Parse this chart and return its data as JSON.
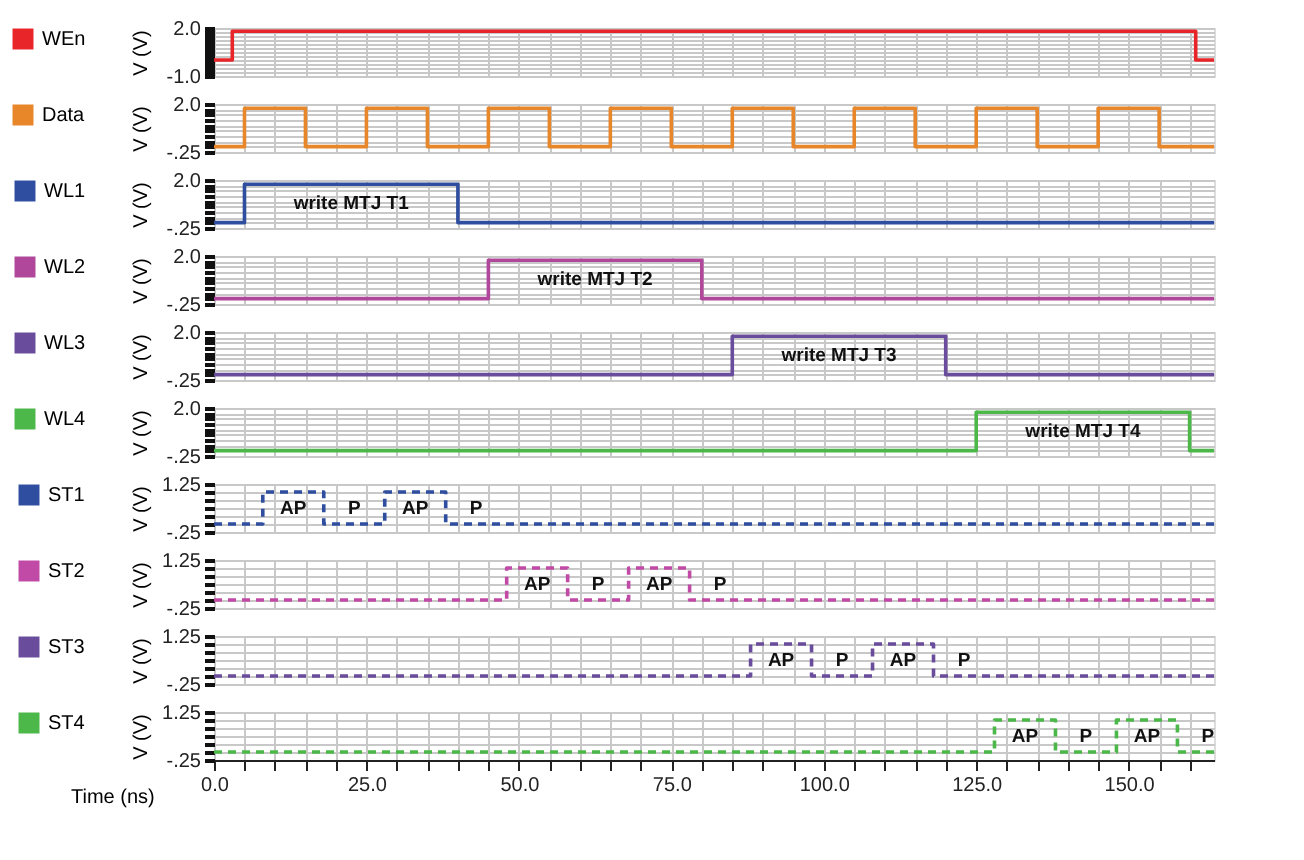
{
  "chart_data": [
    {
      "type": "step",
      "ylabel": "V (V)",
      "xlim": [
        0,
        164
      ],
      "ylim": [
        -1.0,
        2.0
      ],
      "tick_labels": "y",
      "grid": true,
      "legend": "left",
      "line_style": "solid",
      "xticks": [
        {
          "value": 0,
          "label": null
        },
        {
          "value": 5,
          "label": null
        },
        {
          "value": 10,
          "label": null
        },
        {
          "value": 15,
          "label": null
        },
        {
          "value": 20,
          "label": null
        },
        {
          "value": 25,
          "label": null
        },
        {
          "value": 30,
          "label": null
        },
        {
          "value": 35,
          "label": null
        },
        {
          "value": 40,
          "label": null
        },
        {
          "value": 45,
          "label": null
        },
        {
          "value": 50,
          "label": null
        },
        {
          "value": 55,
          "label": null
        },
        {
          "value": 60,
          "label": null
        },
        {
          "value": 65,
          "label": null
        },
        {
          "value": 70,
          "label": null
        },
        {
          "value": 75,
          "label": null
        },
        {
          "value": 80,
          "label": null
        },
        {
          "value": 85,
          "label": null
        },
        {
          "value": 90,
          "label": null
        },
        {
          "value": 95,
          "label": null
        },
        {
          "value": 100,
          "label": null
        },
        {
          "value": 105,
          "label": null
        },
        {
          "value": 110,
          "label": null
        },
        {
          "value": 115,
          "label": null
        },
        {
          "value": 120,
          "label": null
        },
        {
          "value": 125,
          "label": null
        },
        {
          "value": 130,
          "label": null
        },
        {
          "value": 135,
          "label": null
        },
        {
          "value": 140,
          "label": null
        },
        {
          "value": 145,
          "label": null
        },
        {
          "value": 150,
          "label": null
        },
        {
          "value": 155,
          "label": null
        },
        {
          "value": 160,
          "label": null
        }
      ],
      "yticks": [
        {
          "value": -1.0,
          "label": "-1.0"
        },
        {
          "value": -0.75,
          "label": null
        },
        {
          "value": -0.5,
          "label": null
        },
        {
          "value": -0.25,
          "label": null
        },
        {
          "value": 0,
          "label": null
        },
        {
          "value": 0.25,
          "label": null
        },
        {
          "value": 0.5,
          "label": null
        },
        {
          "value": 0.75,
          "label": null
        },
        {
          "value": 1.0,
          "label": null
        },
        {
          "value": 1.25,
          "label": null
        },
        {
          "value": 1.5,
          "label": null
        },
        {
          "value": 1.75,
          "label": null
        },
        {
          "value": 2.0,
          "label": "2.0"
        }
      ],
      "x": [
        0,
        3,
        161,
        164
      ],
      "series": [
        {
          "name": "WEn",
          "color": "#e8262a",
          "values": [
            0,
            1.8,
            0,
            0
          ]
        }
      ]
    },
    {
      "type": "step",
      "ylabel": "V (V)",
      "xlim": [
        0,
        164
      ],
      "ylim": [
        -0.25,
        2.0
      ],
      "tick_labels": "y",
      "grid": true,
      "legend": "left",
      "line_style": "solid",
      "xticks": [
        {
          "value": 0,
          "label": null
        },
        {
          "value": 5,
          "label": null
        },
        {
          "value": 10,
          "label": null
        },
        {
          "value": 15,
          "label": null
        },
        {
          "value": 20,
          "label": null
        },
        {
          "value": 25,
          "label": null
        },
        {
          "value": 30,
          "label": null
        },
        {
          "value": 35,
          "label": null
        },
        {
          "value": 40,
          "label": null
        },
        {
          "value": 45,
          "label": null
        },
        {
          "value": 50,
          "label": null
        },
        {
          "value": 55,
          "label": null
        },
        {
          "value": 60,
          "label": null
        },
        {
          "value": 65,
          "label": null
        },
        {
          "value": 70,
          "label": null
        },
        {
          "value": 75,
          "label": null
        },
        {
          "value": 80,
          "label": null
        },
        {
          "value": 85,
          "label": null
        },
        {
          "value": 90,
          "label": null
        },
        {
          "value": 95,
          "label": null
        },
        {
          "value": 100,
          "label": null
        },
        {
          "value": 105,
          "label": null
        },
        {
          "value": 110,
          "label": null
        },
        {
          "value": 115,
          "label": null
        },
        {
          "value": 120,
          "label": null
        },
        {
          "value": 125,
          "label": null
        },
        {
          "value": 130,
          "label": null
        },
        {
          "value": 135,
          "label": null
        },
        {
          "value": 140,
          "label": null
        },
        {
          "value": 145,
          "label": null
        },
        {
          "value": 150,
          "label": null
        },
        {
          "value": 155,
          "label": null
        },
        {
          "value": 160,
          "label": null
        }
      ],
      "yticks": [
        {
          "value": -0.25,
          "label": "-.25"
        },
        {
          "value": 0,
          "label": null
        },
        {
          "value": 0.25,
          "label": null
        },
        {
          "value": 0.5,
          "label": null
        },
        {
          "value": 0.75,
          "label": null
        },
        {
          "value": 1.0,
          "label": null
        },
        {
          "value": 1.25,
          "label": null
        },
        {
          "value": 1.5,
          "label": null
        },
        {
          "value": 1.75,
          "label": null
        },
        {
          "value": 2.0,
          "label": "2.0"
        }
      ],
      "x": [
        0,
        5,
        15,
        25,
        35,
        45,
        55,
        65,
        75,
        85,
        95,
        105,
        115,
        125,
        135,
        145,
        155,
        164
      ],
      "series": [
        {
          "name": "Data",
          "color": "#e8862a",
          "values": [
            0,
            1.8,
            0,
            1.8,
            0,
            1.8,
            0,
            1.8,
            0,
            1.8,
            0,
            1.8,
            0,
            1.8,
            0,
            1.8,
            0,
            0
          ]
        }
      ]
    },
    {
      "type": "step",
      "ylabel": "V (V)",
      "xlim": [
        0,
        164
      ],
      "ylim": [
        -0.25,
        2.0
      ],
      "tick_labels": "y",
      "grid": true,
      "legend": "left",
      "line_style": "solid",
      "xticks": [
        {
          "value": 0,
          "label": null
        },
        {
          "value": 5,
          "label": null
        },
        {
          "value": 10,
          "label": null
        },
        {
          "value": 15,
          "label": null
        },
        {
          "value": 20,
          "label": null
        },
        {
          "value": 25,
          "label": null
        },
        {
          "value": 30,
          "label": null
        },
        {
          "value": 35,
          "label": null
        },
        {
          "value": 40,
          "label": null
        },
        {
          "value": 45,
          "label": null
        },
        {
          "value": 50,
          "label": null
        },
        {
          "value": 55,
          "label": null
        },
        {
          "value": 60,
          "label": null
        },
        {
          "value": 65,
          "label": null
        },
        {
          "value": 70,
          "label": null
        },
        {
          "value": 75,
          "label": null
        },
        {
          "value": 80,
          "label": null
        },
        {
          "value": 85,
          "label": null
        },
        {
          "value": 90,
          "label": null
        },
        {
          "value": 95,
          "label": null
        },
        {
          "value": 100,
          "label": null
        },
        {
          "value": 105,
          "label": null
        },
        {
          "value": 110,
          "label": null
        },
        {
          "value": 115,
          "label": null
        },
        {
          "value": 120,
          "label": null
        },
        {
          "value": 125,
          "label": null
        },
        {
          "value": 130,
          "label": null
        },
        {
          "value": 135,
          "label": null
        },
        {
          "value": 140,
          "label": null
        },
        {
          "value": 145,
          "label": null
        },
        {
          "value": 150,
          "label": null
        },
        {
          "value": 155,
          "label": null
        },
        {
          "value": 160,
          "label": null
        }
      ],
      "yticks": [
        {
          "value": -0.25,
          "label": "-.25"
        },
        {
          "value": 0,
          "label": null
        },
        {
          "value": 0.25,
          "label": null
        },
        {
          "value": 0.5,
          "label": null
        },
        {
          "value": 0.75,
          "label": null
        },
        {
          "value": 1.0,
          "label": null
        },
        {
          "value": 1.25,
          "label": null
        },
        {
          "value": 1.5,
          "label": null
        },
        {
          "value": 1.75,
          "label": null
        },
        {
          "value": 2.0,
          "label": "2.0"
        }
      ],
      "x": [
        0,
        5,
        40,
        164
      ],
      "series": [
        {
          "name": "WL1",
          "color": "#2f4ea0",
          "values": [
            0,
            1.8,
            0,
            0
          ]
        }
      ],
      "annotations": [
        "write MTJ T1"
      ]
    },
    {
      "type": "step",
      "ylabel": "V (V)",
      "xlim": [
        0,
        164
      ],
      "ylim": [
        -0.25,
        2.0
      ],
      "tick_labels": "y",
      "grid": true,
      "legend": "left",
      "line_style": "solid",
      "xticks": [
        {
          "value": 0,
          "label": null
        },
        {
          "value": 5,
          "label": null
        },
        {
          "value": 10,
          "label": null
        },
        {
          "value": 15,
          "label": null
        },
        {
          "value": 20,
          "label": null
        },
        {
          "value": 25,
          "label": null
        },
        {
          "value": 30,
          "label": null
        },
        {
          "value": 35,
          "label": null
        },
        {
          "value": 40,
          "label": null
        },
        {
          "value": 45,
          "label": null
        },
        {
          "value": 50,
          "label": null
        },
        {
          "value": 55,
          "label": null
        },
        {
          "value": 60,
          "label": null
        },
        {
          "value": 65,
          "label": null
        },
        {
          "value": 70,
          "label": null
        },
        {
          "value": 75,
          "label": null
        },
        {
          "value": 80,
          "label": null
        },
        {
          "value": 85,
          "label": null
        },
        {
          "value": 90,
          "label": null
        },
        {
          "value": 95,
          "label": null
        },
        {
          "value": 100,
          "label": null
        },
        {
          "value": 105,
          "label": null
        },
        {
          "value": 110,
          "label": null
        },
        {
          "value": 115,
          "label": null
        },
        {
          "value": 120,
          "label": null
        },
        {
          "value": 125,
          "label": null
        },
        {
          "value": 130,
          "label": null
        },
        {
          "value": 135,
          "label": null
        },
        {
          "value": 140,
          "label": null
        },
        {
          "value": 145,
          "label": null
        },
        {
          "value": 150,
          "label": null
        },
        {
          "value": 155,
          "label": null
        },
        {
          "value": 160,
          "label": null
        }
      ],
      "yticks": [
        {
          "value": -0.25,
          "label": "-.25"
        },
        {
          "value": 0,
          "label": null
        },
        {
          "value": 0.25,
          "label": null
        },
        {
          "value": 0.5,
          "label": null
        },
        {
          "value": 0.75,
          "label": null
        },
        {
          "value": 1.0,
          "label": null
        },
        {
          "value": 1.25,
          "label": null
        },
        {
          "value": 1.5,
          "label": null
        },
        {
          "value": 1.75,
          "label": null
        },
        {
          "value": 2.0,
          "label": "2.0"
        }
      ],
      "x": [
        0,
        45,
        80,
        164
      ],
      "series": [
        {
          "name": "WL2",
          "color": "#b0479a",
          "values": [
            0,
            1.8,
            0,
            0
          ]
        }
      ],
      "annotations": [
        "write MTJ T2"
      ]
    },
    {
      "type": "step",
      "ylabel": "V (V)",
      "xlim": [
        0,
        164
      ],
      "ylim": [
        -0.25,
        2.0
      ],
      "tick_labels": "y",
      "grid": true,
      "legend": "left",
      "line_style": "solid",
      "xticks": [
        {
          "value": 0,
          "label": null
        },
        {
          "value": 5,
          "label": null
        },
        {
          "value": 10,
          "label": null
        },
        {
          "value": 15,
          "label": null
        },
        {
          "value": 20,
          "label": null
        },
        {
          "value": 25,
          "label": null
        },
        {
          "value": 30,
          "label": null
        },
        {
          "value": 35,
          "label": null
        },
        {
          "value": 40,
          "label": null
        },
        {
          "value": 45,
          "label": null
        },
        {
          "value": 50,
          "label": null
        },
        {
          "value": 55,
          "label": null
        },
        {
          "value": 60,
          "label": null
        },
        {
          "value": 65,
          "label": null
        },
        {
          "value": 70,
          "label": null
        },
        {
          "value": 75,
          "label": null
        },
        {
          "value": 80,
          "label": null
        },
        {
          "value": 85,
          "label": null
        },
        {
          "value": 90,
          "label": null
        },
        {
          "value": 95,
          "label": null
        },
        {
          "value": 100,
          "label": null
        },
        {
          "value": 105,
          "label": null
        },
        {
          "value": 110,
          "label": null
        },
        {
          "value": 115,
          "label": null
        },
        {
          "value": 120,
          "label": null
        },
        {
          "value": 125,
          "label": null
        },
        {
          "value": 130,
          "label": null
        },
        {
          "value": 135,
          "label": null
        },
        {
          "value": 140,
          "label": null
        },
        {
          "value": 145,
          "label": null
        },
        {
          "value": 150,
          "label": null
        },
        {
          "value": 155,
          "label": null
        },
        {
          "value": 160,
          "label": null
        }
      ],
      "yticks": [
        {
          "value": -0.25,
          "label": "-.25"
        },
        {
          "value": 0,
          "label": null
        },
        {
          "value": 0.25,
          "label": null
        },
        {
          "value": 0.5,
          "label": null
        },
        {
          "value": 0.75,
          "label": null
        },
        {
          "value": 1.0,
          "label": null
        },
        {
          "value": 1.25,
          "label": null
        },
        {
          "value": 1.5,
          "label": null
        },
        {
          "value": 1.75,
          "label": null
        },
        {
          "value": 2.0,
          "label": "2.0"
        }
      ],
      "x": [
        0,
        85,
        120,
        164
      ],
      "series": [
        {
          "name": "WL3",
          "color": "#6a4c9c",
          "values": [
            0,
            1.8,
            0,
            0
          ]
        }
      ],
      "annotations": [
        "write MTJ T3"
      ]
    },
    {
      "type": "step",
      "ylabel": "V (V)",
      "xlim": [
        0,
        164
      ],
      "ylim": [
        -0.25,
        2.0
      ],
      "tick_labels": "y",
      "grid": true,
      "legend": "left",
      "line_style": "solid",
      "xticks": [
        {
          "value": 0,
          "label": null
        },
        {
          "value": 5,
          "label": null
        },
        {
          "value": 10,
          "label": null
        },
        {
          "value": 15,
          "label": null
        },
        {
          "value": 20,
          "label": null
        },
        {
          "value": 25,
          "label": null
        },
        {
          "value": 30,
          "label": null
        },
        {
          "value": 35,
          "label": null
        },
        {
          "value": 40,
          "label": null
        },
        {
          "value": 45,
          "label": null
        },
        {
          "value": 50,
          "label": null
        },
        {
          "value": 55,
          "label": null
        },
        {
          "value": 60,
          "label": null
        },
        {
          "value": 65,
          "label": null
        },
        {
          "value": 70,
          "label": null
        },
        {
          "value": 75,
          "label": null
        },
        {
          "value": 80,
          "label": null
        },
        {
          "value": 85,
          "label": null
        },
        {
          "value": 90,
          "label": null
        },
        {
          "value": 95,
          "label": null
        },
        {
          "value": 100,
          "label": null
        },
        {
          "value": 105,
          "label": null
        },
        {
          "value": 110,
          "label": null
        },
        {
          "value": 115,
          "label": null
        },
        {
          "value": 120,
          "label": null
        },
        {
          "value": 125,
          "label": null
        },
        {
          "value": 130,
          "label": null
        },
        {
          "value": 135,
          "label": null
        },
        {
          "value": 140,
          "label": null
        },
        {
          "value": 145,
          "label": null
        },
        {
          "value": 150,
          "label": null
        },
        {
          "value": 155,
          "label": null
        },
        {
          "value": 160,
          "label": null
        }
      ],
      "yticks": [
        {
          "value": -0.25,
          "label": "-.25"
        },
        {
          "value": 0,
          "label": null
        },
        {
          "value": 0.25,
          "label": null
        },
        {
          "value": 0.5,
          "label": null
        },
        {
          "value": 0.75,
          "label": null
        },
        {
          "value": 1.0,
          "label": null
        },
        {
          "value": 1.25,
          "label": null
        },
        {
          "value": 1.5,
          "label": null
        },
        {
          "value": 1.75,
          "label": null
        },
        {
          "value": 2.0,
          "label": "2.0"
        }
      ],
      "x": [
        0,
        125,
        160,
        164
      ],
      "series": [
        {
          "name": "WL4",
          "color": "#4cb84a",
          "values": [
            0,
            1.8,
            0,
            0
          ]
        }
      ],
      "annotations": [
        "write MTJ T4"
      ]
    },
    {
      "type": "step",
      "ylabel": "V (V)",
      "xlim": [
        0,
        164
      ],
      "ylim": [
        -0.25,
        1.25
      ],
      "tick_labels": "y",
      "grid": true,
      "legend": "left",
      "line_style": "dashed",
      "xticks": [
        {
          "value": 0,
          "label": null
        },
        {
          "value": 5,
          "label": null
        },
        {
          "value": 10,
          "label": null
        },
        {
          "value": 15,
          "label": null
        },
        {
          "value": 20,
          "label": null
        },
        {
          "value": 25,
          "label": null
        },
        {
          "value": 30,
          "label": null
        },
        {
          "value": 35,
          "label": null
        },
        {
          "value": 40,
          "label": null
        },
        {
          "value": 45,
          "label": null
        },
        {
          "value": 50,
          "label": null
        },
        {
          "value": 55,
          "label": null
        },
        {
          "value": 60,
          "label": null
        },
        {
          "value": 65,
          "label": null
        },
        {
          "value": 70,
          "label": null
        },
        {
          "value": 75,
          "label": null
        },
        {
          "value": 80,
          "label": null
        },
        {
          "value": 85,
          "label": null
        },
        {
          "value": 90,
          "label": null
        },
        {
          "value": 95,
          "label": null
        },
        {
          "value": 100,
          "label": null
        },
        {
          "value": 105,
          "label": null
        },
        {
          "value": 110,
          "label": null
        },
        {
          "value": 115,
          "label": null
        },
        {
          "value": 120,
          "label": null
        },
        {
          "value": 125,
          "label": null
        },
        {
          "value": 130,
          "label": null
        },
        {
          "value": 135,
          "label": null
        },
        {
          "value": 140,
          "label": null
        },
        {
          "value": 145,
          "label": null
        },
        {
          "value": 150,
          "label": null
        },
        {
          "value": 155,
          "label": null
        },
        {
          "value": 160,
          "label": null
        }
      ],
      "yticks": [
        {
          "value": -0.25,
          "label": "-.25"
        },
        {
          "value": 0,
          "label": null
        },
        {
          "value": 0.25,
          "label": null
        },
        {
          "value": 0.5,
          "label": null
        },
        {
          "value": 0.75,
          "label": null
        },
        {
          "value": 1.0,
          "label": null
        },
        {
          "value": 1.25,
          "label": "1.25"
        }
      ],
      "x": [
        0,
        8,
        18,
        28,
        38,
        164
      ],
      "series": [
        {
          "name": "ST1",
          "color": "#2f4ea0",
          "values": [
            0,
            1.0,
            0,
            1.0,
            0,
            0
          ]
        }
      ],
      "annotations": [
        "AP",
        "P",
        "AP",
        "P"
      ]
    },
    {
      "type": "step",
      "ylabel": "V (V)",
      "xlim": [
        0,
        164
      ],
      "ylim": [
        -0.25,
        1.25
      ],
      "tick_labels": "y",
      "grid": true,
      "legend": "left",
      "line_style": "dashed",
      "xticks": [
        {
          "value": 0,
          "label": null
        },
        {
          "value": 5,
          "label": null
        },
        {
          "value": 10,
          "label": null
        },
        {
          "value": 15,
          "label": null
        },
        {
          "value": 20,
          "label": null
        },
        {
          "value": 25,
          "label": null
        },
        {
          "value": 30,
          "label": null
        },
        {
          "value": 35,
          "label": null
        },
        {
          "value": 40,
          "label": null
        },
        {
          "value": 45,
          "label": null
        },
        {
          "value": 50,
          "label": null
        },
        {
          "value": 55,
          "label": null
        },
        {
          "value": 60,
          "label": null
        },
        {
          "value": 65,
          "label": null
        },
        {
          "value": 70,
          "label": null
        },
        {
          "value": 75,
          "label": null
        },
        {
          "value": 80,
          "label": null
        },
        {
          "value": 85,
          "label": null
        },
        {
          "value": 90,
          "label": null
        },
        {
          "value": 95,
          "label": null
        },
        {
          "value": 100,
          "label": null
        },
        {
          "value": 105,
          "label": null
        },
        {
          "value": 110,
          "label": null
        },
        {
          "value": 115,
          "label": null
        },
        {
          "value": 120,
          "label": null
        },
        {
          "value": 125,
          "label": null
        },
        {
          "value": 130,
          "label": null
        },
        {
          "value": 135,
          "label": null
        },
        {
          "value": 140,
          "label": null
        },
        {
          "value": 145,
          "label": null
        },
        {
          "value": 150,
          "label": null
        },
        {
          "value": 155,
          "label": null
        },
        {
          "value": 160,
          "label": null
        }
      ],
      "yticks": [
        {
          "value": -0.25,
          "label": "-.25"
        },
        {
          "value": 0,
          "label": null
        },
        {
          "value": 0.25,
          "label": null
        },
        {
          "value": 0.5,
          "label": null
        },
        {
          "value": 0.75,
          "label": null
        },
        {
          "value": 1.0,
          "label": null
        },
        {
          "value": 1.25,
          "label": "1.25"
        }
      ],
      "x": [
        0,
        48,
        58,
        68,
        78,
        164
      ],
      "series": [
        {
          "name": "ST2",
          "color": "#c04aa6",
          "values": [
            0,
            1.0,
            0,
            1.0,
            0,
            0
          ]
        }
      ],
      "annotations": [
        "AP",
        "P",
        "AP",
        "P"
      ]
    },
    {
      "type": "step",
      "ylabel": "V (V)",
      "xlim": [
        0,
        164
      ],
      "ylim": [
        -0.25,
        1.25
      ],
      "tick_labels": "y",
      "grid": true,
      "legend": "left",
      "line_style": "dashed",
      "xticks": [
        {
          "value": 0,
          "label": null
        },
        {
          "value": 5,
          "label": null
        },
        {
          "value": 10,
          "label": null
        },
        {
          "value": 15,
          "label": null
        },
        {
          "value": 20,
          "label": null
        },
        {
          "value": 25,
          "label": null
        },
        {
          "value": 30,
          "label": null
        },
        {
          "value": 35,
          "label": null
        },
        {
          "value": 40,
          "label": null
        },
        {
          "value": 45,
          "label": null
        },
        {
          "value": 50,
          "label": null
        },
        {
          "value": 55,
          "label": null
        },
        {
          "value": 60,
          "label": null
        },
        {
          "value": 65,
          "label": null
        },
        {
          "value": 70,
          "label": null
        },
        {
          "value": 75,
          "label": null
        },
        {
          "value": 80,
          "label": null
        },
        {
          "value": 85,
          "label": null
        },
        {
          "value": 90,
          "label": null
        },
        {
          "value": 95,
          "label": null
        },
        {
          "value": 100,
          "label": null
        },
        {
          "value": 105,
          "label": null
        },
        {
          "value": 110,
          "label": null
        },
        {
          "value": 115,
          "label": null
        },
        {
          "value": 120,
          "label": null
        },
        {
          "value": 125,
          "label": null
        },
        {
          "value": 130,
          "label": null
        },
        {
          "value": 135,
          "label": null
        },
        {
          "value": 140,
          "label": null
        },
        {
          "value": 145,
          "label": null
        },
        {
          "value": 150,
          "label": null
        },
        {
          "value": 155,
          "label": null
        },
        {
          "value": 160,
          "label": null
        }
      ],
      "yticks": [
        {
          "value": -0.25,
          "label": "-.25"
        },
        {
          "value": 0,
          "label": null
        },
        {
          "value": 0.25,
          "label": null
        },
        {
          "value": 0.5,
          "label": null
        },
        {
          "value": 0.75,
          "label": null
        },
        {
          "value": 1.0,
          "label": null
        },
        {
          "value": 1.25,
          "label": "1.25"
        }
      ],
      "x": [
        0,
        88,
        98,
        108,
        118,
        164
      ],
      "series": [
        {
          "name": "ST3",
          "color": "#6a4c9c",
          "values": [
            0,
            1.0,
            0,
            1.0,
            0,
            0
          ]
        }
      ],
      "annotations": [
        "AP",
        "P",
        "AP",
        "P"
      ]
    },
    {
      "type": "step",
      "ylabel": "V (V)",
      "xlabel": "Time (ns)",
      "xlim": [
        0,
        164
      ],
      "ylim": [
        -0.25,
        1.25
      ],
      "grid": true,
      "legend": "left",
      "line_style": "dashed",
      "xticks": [
        {
          "value": 0,
          "label": "0.0"
        },
        {
          "value": 5,
          "label": null
        },
        {
          "value": 10,
          "label": null
        },
        {
          "value": 15,
          "label": null
        },
        {
          "value": 20,
          "label": null
        },
        {
          "value": 25,
          "label": "25.0"
        },
        {
          "value": 30,
          "label": null
        },
        {
          "value": 35,
          "label": null
        },
        {
          "value": 40,
          "label": null
        },
        {
          "value": 45,
          "label": null
        },
        {
          "value": 50,
          "label": "50.0"
        },
        {
          "value": 55,
          "label": null
        },
        {
          "value": 60,
          "label": null
        },
        {
          "value": 65,
          "label": null
        },
        {
          "value": 70,
          "label": null
        },
        {
          "value": 75,
          "label": "75.0"
        },
        {
          "value": 80,
          "label": null
        },
        {
          "value": 85,
          "label": null
        },
        {
          "value": 90,
          "label": null
        },
        {
          "value": 95,
          "label": null
        },
        {
          "value": 100,
          "label": "100.0"
        },
        {
          "value": 105,
          "label": null
        },
        {
          "value": 110,
          "label": null
        },
        {
          "value": 115,
          "label": null
        },
        {
          "value": 120,
          "label": null
        },
        {
          "value": 125,
          "label": "125.0"
        },
        {
          "value": 130,
          "label": null
        },
        {
          "value": 135,
          "label": null
        },
        {
          "value": 140,
          "label": null
        },
        {
          "value": 145,
          "label": null
        },
        {
          "value": 150,
          "label": "150.0"
        },
        {
          "value": 155,
          "label": null
        },
        {
          "value": 160,
          "label": null
        }
      ],
      "yticks": [
        {
          "value": -0.25,
          "label": "-.25"
        },
        {
          "value": 0,
          "label": null
        },
        {
          "value": 0.25,
          "label": null
        },
        {
          "value": 0.5,
          "label": null
        },
        {
          "value": 0.75,
          "label": null
        },
        {
          "value": 1.0,
          "label": null
        },
        {
          "value": 1.25,
          "label": "1.25"
        }
      ],
      "x": [
        0,
        128,
        138,
        148,
        158,
        164
      ],
      "series": [
        {
          "name": "ST4",
          "color": "#4cb84a",
          "values": [
            0,
            1.0,
            0,
            1.0,
            0,
            0
          ]
        }
      ],
      "annotations": [
        "AP",
        "P",
        "AP",
        "P"
      ]
    }
  ]
}
